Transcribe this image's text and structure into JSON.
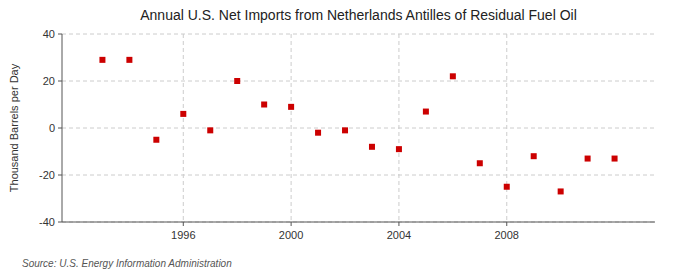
{
  "chart_data": {
    "type": "scatter",
    "title": "Annual U.S. Net Imports from Netherlands Antilles of Residual Fuel Oil",
    "ylabel": "Thousand Barrels per Day",
    "annotations": [
      "Source: U.S. Energy Information Administration"
    ],
    "x": [
      1993,
      1994,
      1995,
      1996,
      1997,
      1998,
      1999,
      2000,
      2001,
      2002,
      2003,
      2004,
      2005,
      2006,
      2007,
      2008,
      2009,
      2010,
      2011,
      2012
    ],
    "values": [
      29,
      29,
      -5,
      6,
      -1,
      20,
      10,
      9,
      -2,
      -1,
      -8,
      -9,
      7,
      22,
      -15,
      -25,
      -12,
      -27,
      -13,
      -13
    ],
    "color": "#cc0000",
    "marker": "square",
    "xlim": [
      1991.5,
      2013.5
    ],
    "xticks": [
      1996,
      2000,
      2004,
      2008
    ],
    "ylim": [
      -40,
      40
    ],
    "yticks": [
      -40,
      -20,
      0,
      20,
      40
    ],
    "grid": true
  }
}
